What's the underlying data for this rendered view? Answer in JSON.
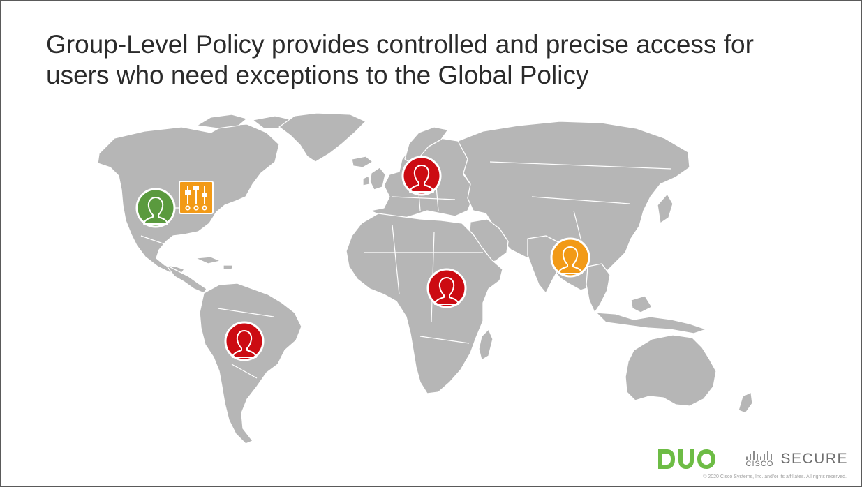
{
  "slide": {
    "title_lines": [
      "Group-Level Policy provides controlled and precise access for",
      "users who need exceptions to the Global Policy"
    ]
  },
  "map": {
    "land_color": "#b6b6b6",
    "markers": [
      {
        "region": "north-america",
        "color": "#5a9a3e",
        "icon": "user-icon"
      },
      {
        "region": "europe",
        "color": "#cc0b12",
        "icon": "user-icon"
      },
      {
        "region": "africa",
        "color": "#cc0b12",
        "icon": "user-icon"
      },
      {
        "region": "south-america",
        "color": "#cc0b12",
        "icon": "user-icon"
      },
      {
        "region": "south-asia",
        "color": "#f29a17",
        "icon": "user-icon"
      }
    ],
    "policy_icon": {
      "color": "#f29a17",
      "icon": "sliders-icon"
    }
  },
  "footer": {
    "brand_color": "#6dbc45",
    "duo_logo": "DUO",
    "cisco_label": "CISCO",
    "secure_label": "SECURE",
    "copyright": "© 2020 Cisco Systems, Inc. and/or its affiliates. All rights reserved."
  }
}
